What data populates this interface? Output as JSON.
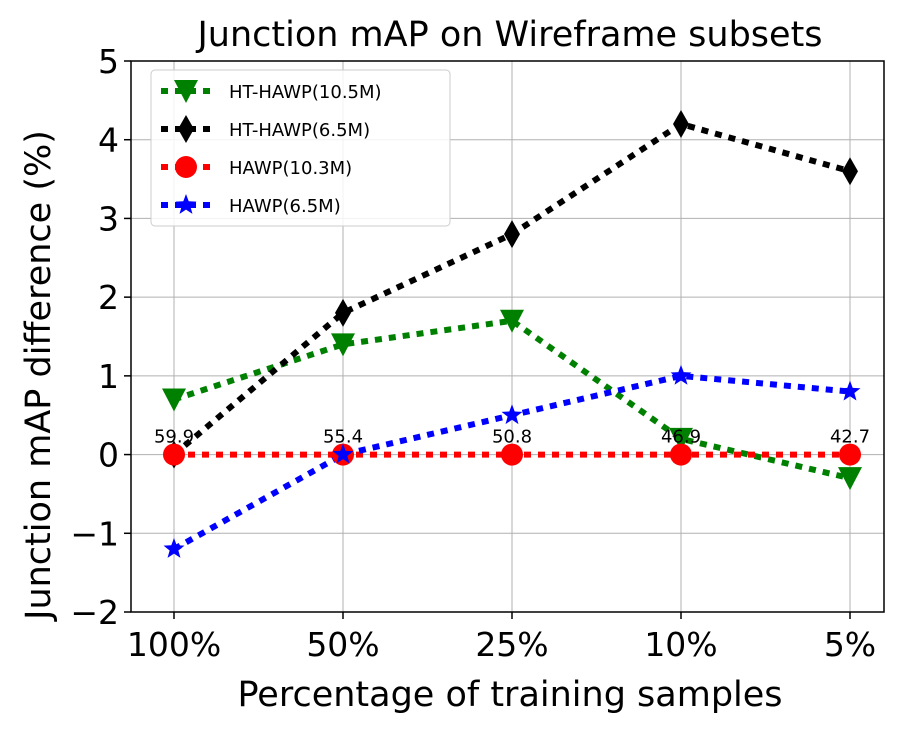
{
  "chart_data": {
    "type": "line",
    "title": "Junction mAP on Wireframe subsets",
    "xlabel": "Percentage of training samples",
    "ylabel": "Junction mAP difference (%)",
    "categories": [
      "100%",
      "50%",
      "25%",
      "10%",
      "5%"
    ],
    "ylim": [
      -2,
      5
    ],
    "yticks": [
      5,
      4,
      3,
      2,
      1,
      0,
      -1,
      -2
    ],
    "ytick_labels": [
      "5",
      "4",
      "3",
      "2",
      "1",
      "0",
      "−1",
      "−2"
    ],
    "grid": true,
    "legend_position": "top-left",
    "baseline_labels": [
      "59.9",
      "55.4",
      "50.8",
      "46.9",
      "42.7"
    ],
    "series": [
      {
        "name": "HT-HAWP(10.5M)",
        "values": [
          0.7,
          1.4,
          1.7,
          0.2,
          -0.3
        ],
        "color": "#008000",
        "marker": "triangle-down"
      },
      {
        "name": "HT-HAWP(6.5M)",
        "values": [
          0.0,
          1.8,
          2.8,
          4.2,
          3.6
        ],
        "color": "#000000",
        "marker": "diamond"
      },
      {
        "name": "HAWP(10.3M)",
        "values": [
          0,
          0,
          0,
          0,
          0
        ],
        "color": "#ff0000",
        "marker": "circle"
      },
      {
        "name": "HAWP(6.5M)",
        "values": [
          -1.2,
          0.0,
          0.5,
          1.0,
          0.8
        ],
        "color": "#0000ff",
        "marker": "star"
      }
    ]
  }
}
